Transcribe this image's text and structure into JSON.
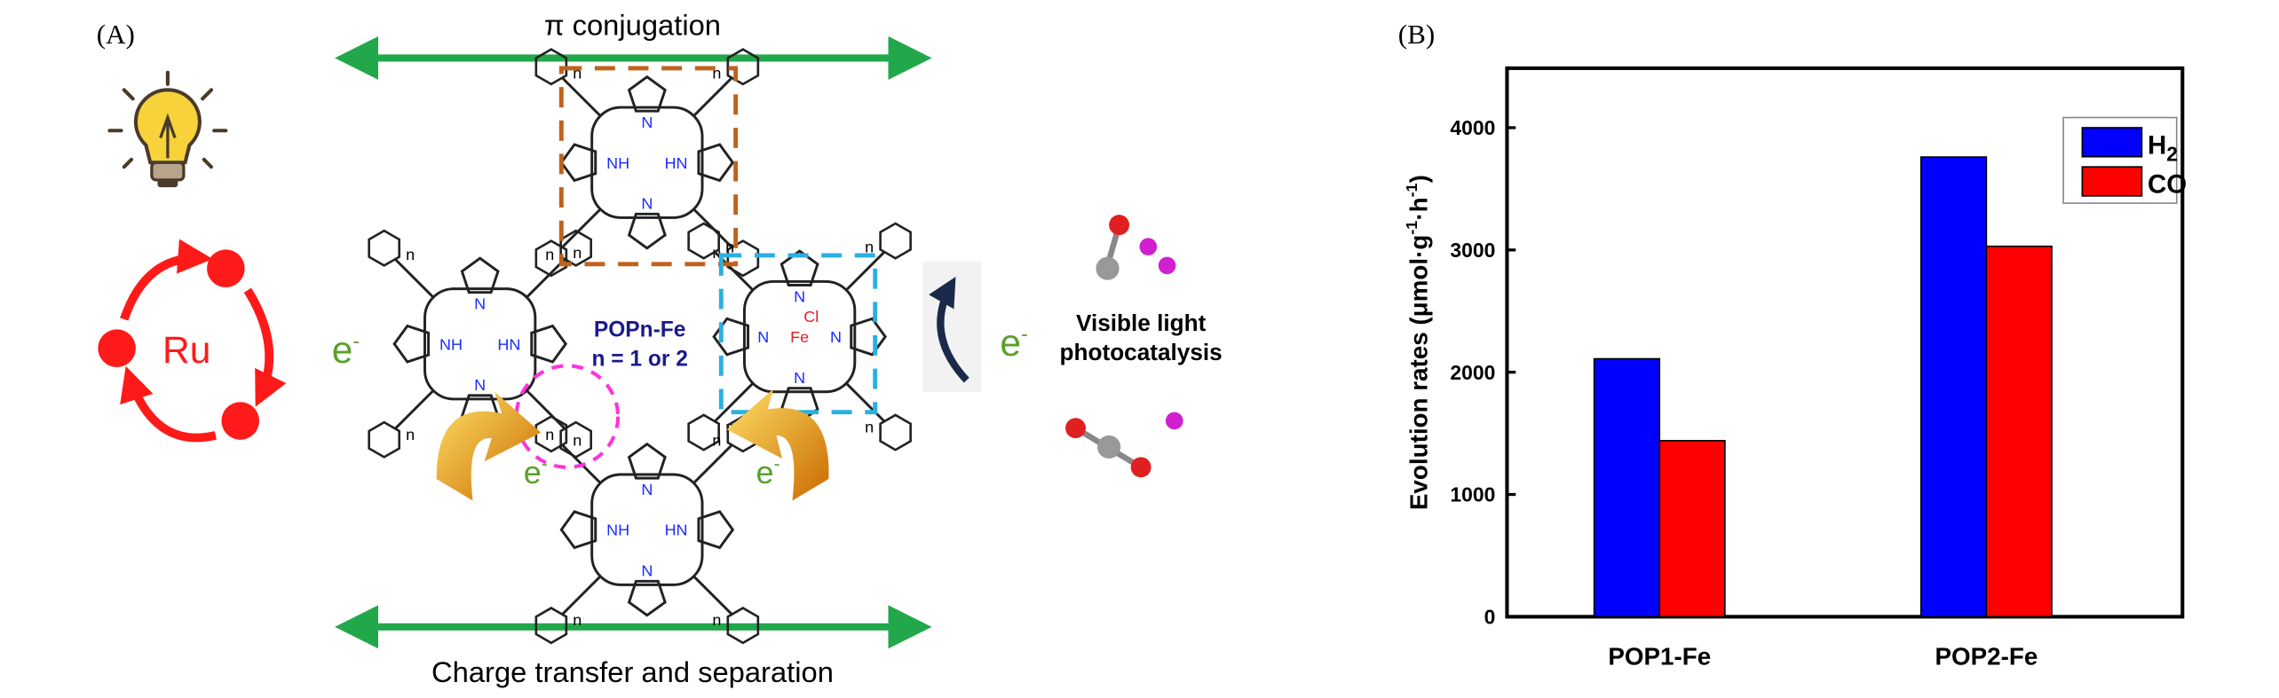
{
  "panel_a": {
    "label": "(A)",
    "top_arrow_text": "π conjugation",
    "bottom_arrow_text": "Charge transfer and separation",
    "ru_label": "Ru",
    "electron": "e",
    "electron_sup": "-",
    "popn_title": "POPn-Fe",
    "popn_sub": "n = 1 or 2",
    "right_text_1": "Visible light",
    "right_text_2": "photocatalysis",
    "atoms": {
      "nh": "NH",
      "hn": "HN",
      "n": "N",
      "fe": "Fe",
      "cl": "Cl",
      "repeat": "n"
    },
    "colors": {
      "arrow_green": "#22a84a",
      "ru_red": "#ff1a1a",
      "electron_green": "#5aa02c",
      "title_navy": "#1a1a8c",
      "box_orange": "#c0621a",
      "box_blue": "#29b0e0",
      "circle_magenta": "#ff33dd",
      "atom_blue": "#1a2cff",
      "bulb_yellow": "#f7d23a",
      "curved_arrow_gold": "#f0a816"
    }
  },
  "panel_b": {
    "label": "(B)"
  },
  "chart_data": {
    "type": "bar",
    "categories": [
      "POP1-Fe",
      "POP2-Fe"
    ],
    "series": [
      {
        "name": "H2",
        "name_main": "H",
        "name_sub": "2",
        "color": "#0000ff",
        "values": [
          2110,
          3760
        ]
      },
      {
        "name": "CO",
        "name_main": "CO",
        "name_sub": "",
        "color": "#ff0000",
        "values": [
          1440,
          3030
        ]
      }
    ],
    "ylabel_main": "Evolution rates (μmol·g",
    "ylabel_sup1": "-1",
    "ylabel_mid": "·h",
    "ylabel_sup2": "-1",
    "ylabel_end": ")",
    "ylim": [
      0,
      4500
    ],
    "yticks": [
      "0",
      "1000",
      "2000",
      "3000",
      "4000"
    ],
    "ytick_values": [
      0,
      1000,
      2000,
      3000,
      4000
    ],
    "legend_position": "top-right",
    "grid": false
  }
}
